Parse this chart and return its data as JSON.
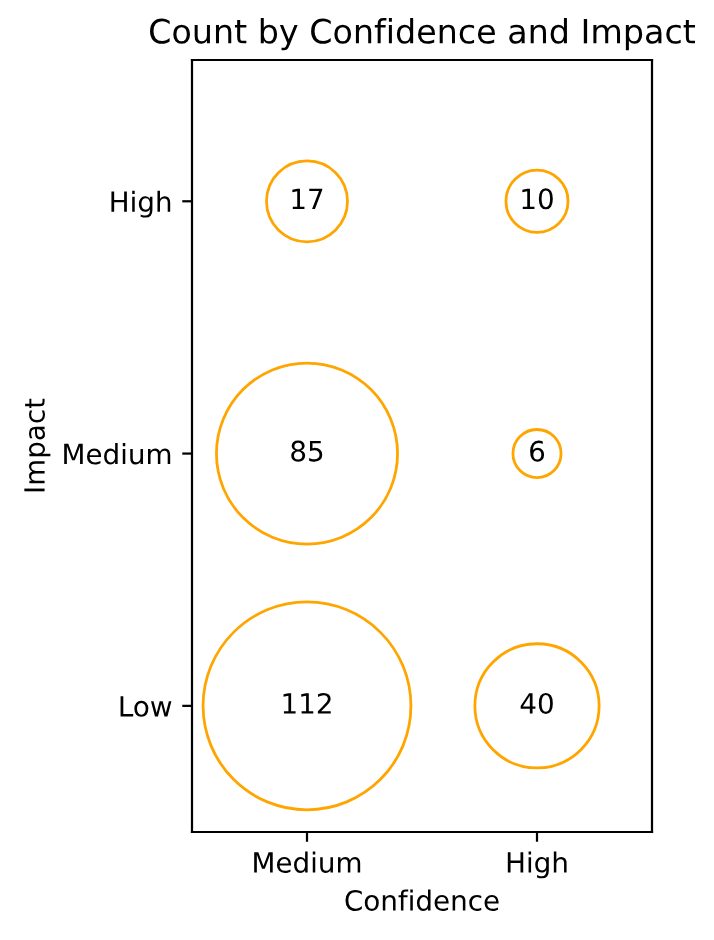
{
  "chart_data": {
    "type": "heatmap",
    "title": "Count by Confidence and Impact",
    "xlabel": "Confidence",
    "ylabel": "Impact",
    "categories": [
      "Medium",
      "High"
    ],
    "y_categories": [
      "High",
      "Medium",
      "Low"
    ],
    "cells": [
      [
        17,
        10
      ],
      [
        85,
        6
      ],
      [
        112,
        40
      ]
    ],
    "color": "#ffa500",
    "data_labels": true
  }
}
